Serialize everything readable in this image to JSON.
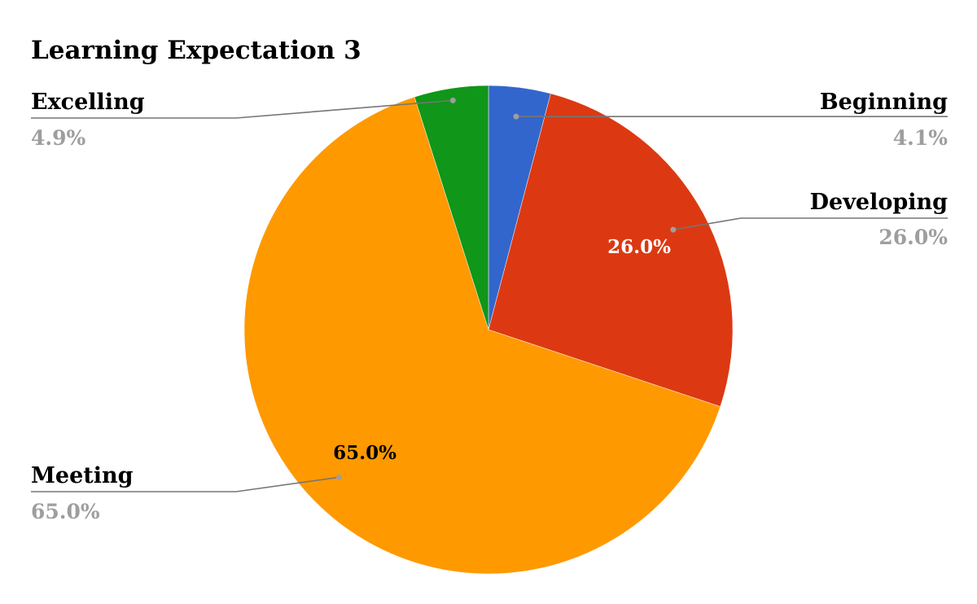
{
  "chart_data": {
    "type": "pie",
    "title": "Learning Expectation 3",
    "slices": [
      {
        "label": "Beginning",
        "value": 4.1,
        "display": "4.1%",
        "color": "#3366cc"
      },
      {
        "label": "Developing",
        "value": 26.0,
        "display": "26.0%",
        "color": "#dc3912"
      },
      {
        "label": "Meeting",
        "value": 65.0,
        "display": "65.0%",
        "color": "#ff9900"
      },
      {
        "label": "Excelling",
        "value": 4.9,
        "display": "4.9%",
        "color": "#109618"
      }
    ],
    "start_angle_deg": 0,
    "direction": "clockwise",
    "legend": "none",
    "leader_line_color": "#757575",
    "inner_label_colors": {
      "Developing": "#ffffff",
      "Meeting": "#000000"
    }
  }
}
